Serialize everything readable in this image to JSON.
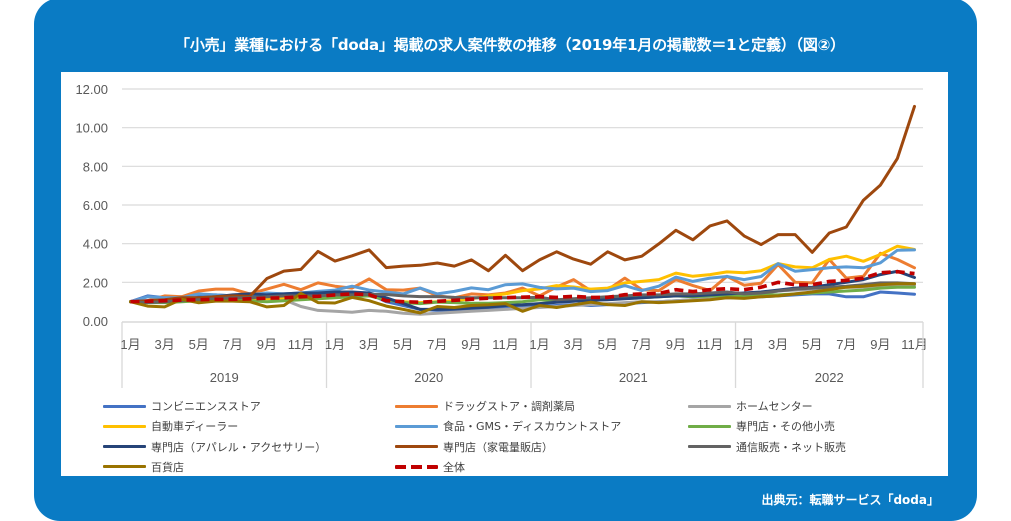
{
  "header": {
    "title": "「小売」業種における「doda」掲載の求人案件数の推移（2019年1月の掲載数＝1と定義）（図②）"
  },
  "footer": {
    "source": "出典元：転職サービス「doda」"
  },
  "theme": {
    "frame_color": "#0A7BC4",
    "grid_color": "#D9D9D9",
    "axis_text_color": "#595959"
  },
  "chart_data": {
    "type": "line",
    "title": "「小売」業種における「doda」掲載の求人案件数の推移（2019年1月の掲載数＝1と定義）（図②）",
    "xlabel": "",
    "ylabel": "",
    "ylim": [
      0,
      12
    ],
    "y_ticks": [
      0,
      2,
      4,
      6,
      8,
      10,
      12
    ],
    "y_tick_labels": [
      "0.00",
      "2.00",
      "4.00",
      "6.00",
      "8.00",
      "10.00",
      "12.00"
    ],
    "grid": true,
    "legend_position": "bottom",
    "x_tick_interval": 2,
    "year_groups": [
      {
        "label": "2019",
        "months": 12
      },
      {
        "label": "2020",
        "months": 12
      },
      {
        "label": "2021",
        "months": 12
      },
      {
        "label": "2022",
        "months": 11
      }
    ],
    "categories": [
      "1月",
      "2月",
      "3月",
      "4月",
      "5月",
      "6月",
      "7月",
      "8月",
      "9月",
      "10月",
      "11月",
      "12月",
      "1月",
      "2月",
      "3月",
      "4月",
      "5月",
      "6月",
      "7月",
      "8月",
      "9月",
      "10月",
      "11月",
      "12月",
      "1月",
      "2月",
      "3月",
      "4月",
      "5月",
      "6月",
      "7月",
      "8月",
      "9月",
      "10月",
      "11月",
      "12月",
      "1月",
      "2月",
      "3月",
      "4月",
      "5月",
      "6月",
      "7月",
      "8月",
      "9月",
      "10月",
      "11月"
    ],
    "series": [
      {
        "key": "convenience-store",
        "name": "コンビニエンスストア",
        "color": "#4472C4",
        "dashed": false,
        "values": [
          1.0,
          1.3,
          1.2,
          1.25,
          1.3,
          1.35,
          1.3,
          1.25,
          1.2,
          1.3,
          1.35,
          1.4,
          1.4,
          1.45,
          1.4,
          1.0,
          0.8,
          0.6,
          0.55,
          0.55,
          0.6,
          0.62,
          0.65,
          0.7,
          0.75,
          0.8,
          0.85,
          0.8,
          0.85,
          0.9,
          0.95,
          1.0,
          1.05,
          1.1,
          1.15,
          1.2,
          1.2,
          1.25,
          1.3,
          1.35,
          1.4,
          1.4,
          1.25,
          1.25,
          1.5,
          1.45,
          1.38
        ]
      },
      {
        "key": "drugstore",
        "name": "ドラッグストア・調剤薬局",
        "color": "#ED7D31",
        "dashed": false,
        "values": [
          1.0,
          1.05,
          1.3,
          1.25,
          1.55,
          1.65,
          1.65,
          1.4,
          1.65,
          1.9,
          1.62,
          1.97,
          1.8,
          1.7,
          2.18,
          1.62,
          1.6,
          1.7,
          1.3,
          1.2,
          1.4,
          1.35,
          1.45,
          1.7,
          1.3,
          1.76,
          2.14,
          1.57,
          1.62,
          2.22,
          1.62,
          1.57,
          2.14,
          1.83,
          1.57,
          2.31,
          1.85,
          1.95,
          2.92,
          2.0,
          1.97,
          3.18,
          2.22,
          2.31,
          3.5,
          3.18,
          2.75
        ]
      },
      {
        "key": "home-center",
        "name": "ホームセンター",
        "color": "#A5A5A5",
        "dashed": false,
        "values": [
          1.0,
          1.0,
          1.05,
          1.1,
          1.1,
          1.15,
          1.2,
          1.15,
          1.2,
          1.1,
          0.75,
          0.55,
          0.5,
          0.45,
          0.55,
          0.5,
          0.4,
          0.35,
          0.4,
          0.45,
          0.5,
          0.55,
          0.6,
          0.65,
          0.7,
          0.75,
          0.8,
          0.85,
          0.9,
          0.95,
          1.0,
          1.0,
          1.05,
          1.1,
          1.15,
          1.2,
          1.3,
          1.4,
          1.55,
          1.6,
          1.65,
          1.7,
          1.75,
          1.75,
          1.8,
          1.85,
          1.85
        ]
      },
      {
        "key": "car-dealer",
        "name": "自動車ディーラー",
        "color": "#FFC000",
        "dashed": false,
        "values": [
          1.0,
          1.0,
          1.05,
          1.05,
          1.1,
          1.1,
          1.15,
          1.1,
          1.15,
          1.2,
          1.25,
          1.2,
          1.25,
          1.3,
          1.35,
          1.1,
          1.0,
          0.95,
          1.0,
          1.05,
          1.15,
          1.3,
          1.4,
          1.57,
          1.66,
          1.83,
          1.76,
          1.65,
          1.7,
          1.97,
          2.05,
          2.14,
          2.48,
          2.31,
          2.4,
          2.54,
          2.5,
          2.6,
          2.97,
          2.8,
          2.75,
          3.18,
          3.35,
          3.09,
          3.44,
          3.87,
          3.7
        ]
      },
      {
        "key": "food-gms-discount",
        "name": "食品・GMS・ディスカウントストア",
        "color": "#5B9BD5",
        "dashed": false,
        "values": [
          1.0,
          1.25,
          1.2,
          1.2,
          1.4,
          1.35,
          1.3,
          1.35,
          1.45,
          1.4,
          1.45,
          1.53,
          1.6,
          1.8,
          1.6,
          1.5,
          1.4,
          1.7,
          1.4,
          1.53,
          1.71,
          1.62,
          1.88,
          1.92,
          1.74,
          1.66,
          1.7,
          1.52,
          1.57,
          1.83,
          1.57,
          1.8,
          2.27,
          2.05,
          2.22,
          2.3,
          2.14,
          2.3,
          2.97,
          2.57,
          2.66,
          2.75,
          2.8,
          2.75,
          3.01,
          3.66,
          3.68
        ]
      },
      {
        "key": "specialty-other",
        "name": "専門店・その他小売",
        "color": "#70AD47",
        "dashed": false,
        "values": [
          1.0,
          0.95,
          0.95,
          1.0,
          1.05,
          1.05,
          1.1,
          1.05,
          1.0,
          1.05,
          1.1,
          1.15,
          1.2,
          1.25,
          1.3,
          1.1,
          0.95,
          0.9,
          0.98,
          0.95,
          0.92,
          0.92,
          0.95,
          1.0,
          1.1,
          1.05,
          1.1,
          1.1,
          1.15,
          1.2,
          1.2,
          1.25,
          1.3,
          1.25,
          1.3,
          1.3,
          1.3,
          1.35,
          1.35,
          1.4,
          1.45,
          1.5,
          1.55,
          1.6,
          1.7,
          1.75,
          1.75
        ]
      },
      {
        "key": "specialty-apparel",
        "name": "専門店（アパレル・アクセサリー）",
        "color": "#264478",
        "dashed": false,
        "values": [
          1.0,
          1.05,
          1.0,
          1.1,
          1.2,
          1.25,
          1.35,
          1.4,
          1.35,
          1.4,
          1.45,
          1.45,
          1.5,
          1.5,
          1.45,
          1.2,
          0.9,
          0.6,
          0.6,
          0.62,
          0.67,
          0.72,
          0.8,
          0.84,
          0.9,
          0.97,
          1.02,
          1.07,
          1.1,
          1.15,
          1.2,
          1.25,
          1.3,
          1.3,
          1.35,
          1.4,
          1.45,
          1.5,
          1.6,
          1.7,
          1.75,
          1.88,
          2.0,
          2.14,
          2.4,
          2.57,
          2.25
        ]
      },
      {
        "key": "specialty-electronics",
        "name": "専門店（家電量販店）",
        "color": "#9E480E",
        "dashed": false,
        "values": [
          1.0,
          1.05,
          1.1,
          1.2,
          1.2,
          1.25,
          1.3,
          1.27,
          2.2,
          2.58,
          2.67,
          3.6,
          3.1,
          3.37,
          3.68,
          2.76,
          2.84,
          2.88,
          3.0,
          2.84,
          3.16,
          2.6,
          3.4,
          2.6,
          3.16,
          3.58,
          3.2,
          2.94,
          3.58,
          3.16,
          3.35,
          3.99,
          4.69,
          4.2,
          4.92,
          5.18,
          4.4,
          3.95,
          4.47,
          4.47,
          3.55,
          4.55,
          4.86,
          6.25,
          7.03,
          8.41,
          11.1
        ]
      },
      {
        "key": "mail-order-online",
        "name": "通信販売・ネット販売",
        "color": "#636363",
        "dashed": false,
        "values": [
          1.0,
          0.95,
          1.0,
          1.05,
          1.1,
          1.15,
          1.2,
          1.2,
          1.25,
          1.3,
          1.3,
          1.3,
          1.35,
          1.35,
          1.37,
          1.37,
          1.3,
          1.26,
          1.26,
          1.22,
          1.2,
          1.2,
          1.2,
          1.2,
          1.22,
          1.1,
          1.15,
          1.2,
          1.25,
          1.3,
          1.35,
          1.35,
          1.4,
          1.4,
          1.45,
          1.5,
          1.4,
          1.45,
          1.55,
          1.65,
          1.7,
          1.75,
          1.8,
          1.88,
          1.97,
          1.97,
          1.93
        ]
      },
      {
        "key": "department-store",
        "name": "百貨店",
        "color": "#997300",
        "dashed": false,
        "values": [
          1.0,
          0.77,
          0.73,
          1.12,
          0.94,
          1.03,
          1.03,
          1.0,
          0.73,
          0.8,
          1.43,
          0.95,
          0.93,
          1.22,
          1.05,
          0.77,
          0.6,
          0.42,
          0.75,
          0.7,
          0.8,
          0.84,
          0.9,
          0.5,
          0.8,
          0.7,
          0.84,
          0.97,
          0.85,
          0.8,
          1.0,
          0.95,
          1.0,
          1.05,
          1.1,
          1.2,
          1.17,
          1.25,
          1.3,
          1.4,
          1.5,
          1.62,
          1.75,
          1.8,
          1.88,
          1.93,
          1.93
        ]
      },
      {
        "key": "overall",
        "name": "全体",
        "color": "#C00000",
        "dashed": true,
        "values": [
          1.0,
          1.02,
          1.05,
          1.08,
          1.1,
          1.12,
          1.12,
          1.15,
          1.18,
          1.2,
          1.25,
          1.28,
          1.35,
          1.4,
          1.36,
          1.05,
          1.0,
          0.97,
          1.02,
          1.07,
          1.13,
          1.18,
          1.21,
          1.23,
          1.26,
          1.22,
          1.28,
          1.22,
          1.22,
          1.36,
          1.4,
          1.43,
          1.62,
          1.52,
          1.62,
          1.67,
          1.62,
          1.75,
          2.0,
          1.88,
          1.88,
          2.05,
          2.1,
          2.22,
          2.5,
          2.55,
          2.45
        ]
      }
    ]
  }
}
